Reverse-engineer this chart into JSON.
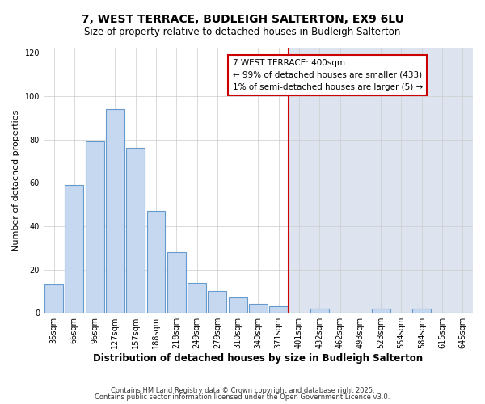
{
  "title": "7, WEST TERRACE, BUDLEIGH SALTERTON, EX9 6LU",
  "subtitle": "Size of property relative to detached houses in Budleigh Salterton",
  "xlabel": "Distribution of detached houses by size in Budleigh Salterton",
  "ylabel": "Number of detached properties",
  "categories": [
    "35sqm",
    "66sqm",
    "96sqm",
    "127sqm",
    "157sqm",
    "188sqm",
    "218sqm",
    "249sqm",
    "279sqm",
    "310sqm",
    "340sqm",
    "371sqm",
    "401sqm",
    "432sqm",
    "462sqm",
    "493sqm",
    "523sqm",
    "554sqm",
    "584sqm",
    "615sqm",
    "645sqm"
  ],
  "values": [
    13,
    59,
    79,
    94,
    76,
    47,
    28,
    14,
    10,
    7,
    4,
    3,
    0,
    2,
    0,
    0,
    2,
    0,
    2,
    0,
    0
  ],
  "vertical_line_index": 12,
  "vertical_line_color": "#cc0000",
  "background_left_color": "#ffffff",
  "background_right_color": "#dde4f0",
  "bar_color": "#c5d8f0",
  "bar_edge_color": "#6699cc",
  "ylim": [
    0,
    122
  ],
  "yticks": [
    0,
    20,
    40,
    60,
    80,
    100,
    120
  ],
  "legend_title": "7 WEST TERRACE: 400sqm",
  "legend_line1": "← 99% of detached houses are smaller (433)",
  "legend_line2": "1% of semi-detached houses are larger (5) →",
  "footer_line1": "Contains HM Land Registry data © Crown copyright and database right 2025.",
  "footer_line2": "Contains public sector information licensed under the Open Government Licence v3.0."
}
